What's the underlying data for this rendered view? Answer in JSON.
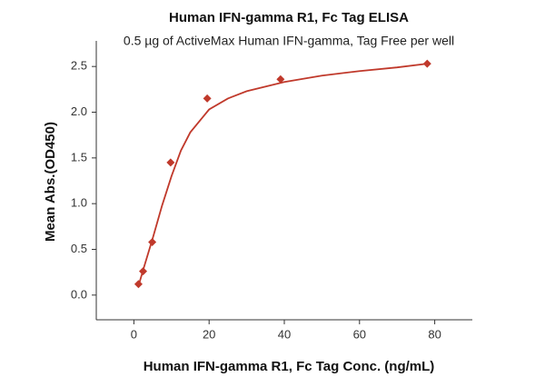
{
  "chart_data": {
    "type": "scatter",
    "title": "Human IFN-gamma R1, Fc Tag ELISA",
    "subtitle": "0.5 µg of ActiveMax Human IFN-gamma, Tag Free per well",
    "x_label": "Human IFN-gamma R1, Fc Tag Conc. (ng/mL)",
    "y_label": "Mean Abs.(OD450)",
    "color": "#c0392b",
    "x": [
      1.22,
      2.44,
      4.88,
      9.77,
      19.5,
      39,
      78
    ],
    "y": [
      0.12,
      0.26,
      0.58,
      1.45,
      2.15,
      2.36,
      2.53
    ],
    "fit_x": [
      1.22,
      2.5,
      5,
      7.5,
      10,
      12.5,
      15,
      20,
      25,
      30,
      40,
      50,
      60,
      70,
      78
    ],
    "fit_y": [
      0.1,
      0.28,
      0.62,
      0.98,
      1.3,
      1.58,
      1.78,
      2.03,
      2.15,
      2.23,
      2.33,
      2.4,
      2.45,
      2.49,
      2.53
    ],
    "xlim": [
      -10,
      90
    ],
    "ylim": [
      -0.27,
      2.78
    ],
    "xticks": [
      0,
      20,
      40,
      60,
      80
    ],
    "yticks": [
      {
        "value": 0,
        "label": "0.0"
      },
      0.5,
      {
        "value": 1,
        "label": "1.0"
      },
      1.5,
      {
        "value": 2,
        "label": "2.0"
      },
      2.5
    ]
  }
}
